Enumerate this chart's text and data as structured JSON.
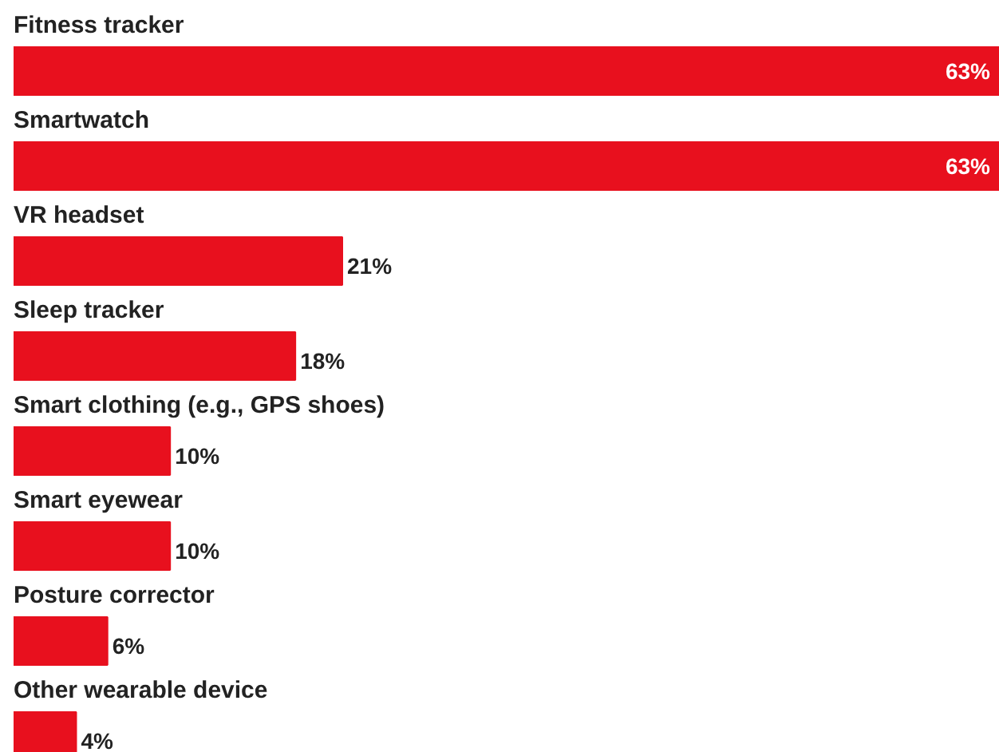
{
  "chart_data": {
    "type": "bar",
    "orientation": "horizontal",
    "categories": [
      "Fitness tracker",
      "Smartwatch",
      "VR headset",
      "Sleep tracker",
      "Smart clothing (e.g., GPS shoes)",
      "Smart eyewear",
      "Posture corrector",
      "Other wearable device"
    ],
    "values": [
      63,
      63,
      21,
      18,
      10,
      10,
      6,
      4
    ],
    "color": "#e8101e",
    "value_labels": [
      "63%",
      "63%",
      "21%",
      "18%",
      "10%",
      "10%",
      "6%",
      "4%"
    ]
  }
}
